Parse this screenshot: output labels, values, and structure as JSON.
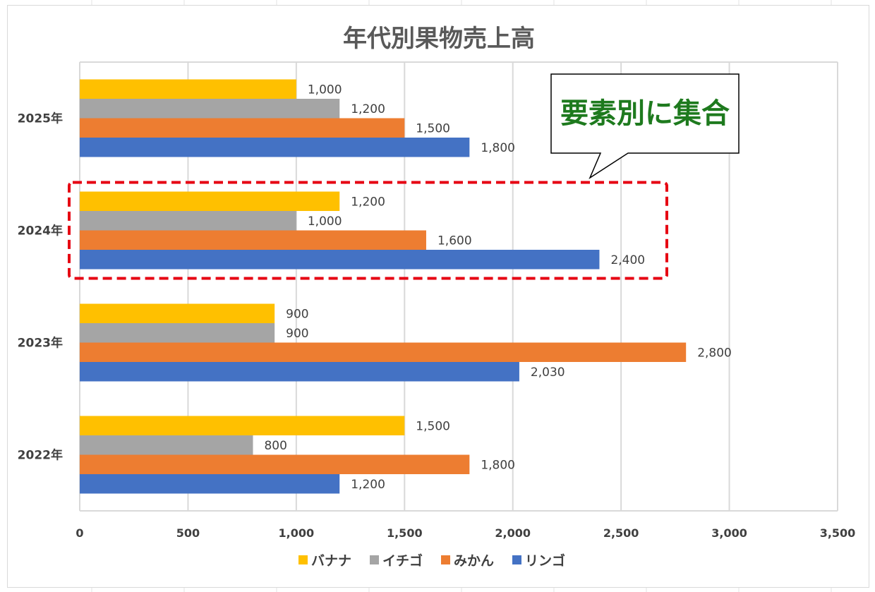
{
  "chart_data": {
    "type": "bar",
    "orientation": "horizontal",
    "title": "年代別果物売上高",
    "categories": [
      "2022年",
      "2023年",
      "2024年",
      "2025年"
    ],
    "series": [
      {
        "name": "リンゴ",
        "color": "#4472C4",
        "values": [
          1200,
          2030,
          2400,
          1800
        ],
        "labels": [
          "1,200",
          "2,030",
          "2,400",
          "1,800"
        ]
      },
      {
        "name": "みかん",
        "color": "#ED7D31",
        "values": [
          1800,
          2800,
          1600,
          1500
        ],
        "labels": [
          "1,800",
          "2,800",
          "1,600",
          "1,500"
        ]
      },
      {
        "name": "イチゴ",
        "color": "#A5A5A5",
        "values": [
          800,
          900,
          1000,
          1200
        ],
        "labels": [
          "800",
          "900",
          "1,000",
          "1,200"
        ]
      },
      {
        "name": "バナナ",
        "color": "#FFC000",
        "values": [
          1500,
          900,
          1200,
          1000
        ],
        "labels": [
          "1,500",
          "900",
          "1,200",
          "1,000"
        ]
      }
    ],
    "xlim": [
      0,
      3500
    ],
    "x_ticks": [
      0,
      500,
      1000,
      1500,
      2000,
      2500,
      3000,
      3500
    ],
    "x_tick_labels": [
      "0",
      "500",
      "1,000",
      "1,500",
      "2,000",
      "2,500",
      "3,000",
      "3,500"
    ],
    "grid": true,
    "legend_position": "bottom",
    "legend_order": [
      "バナナ",
      "イチゴ",
      "みかん",
      "リンゴ"
    ],
    "highlighted_category": "2024年"
  },
  "annotation": {
    "callout_text": "要素別に集合"
  },
  "colors": {
    "highlight_border": "#E60012",
    "callout_text": "#1E7A1E",
    "grid": "#D9D9D9"
  }
}
